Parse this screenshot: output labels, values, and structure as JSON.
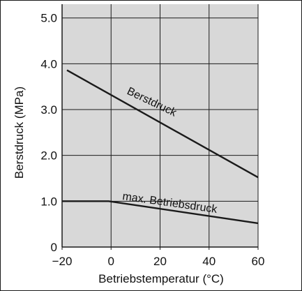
{
  "chart_data": {
    "type": "line",
    "title": "",
    "xlabel": "Betriebstemperatur  (°C)",
    "ylabel": "Berstdruck   (MPa)",
    "xlim": [
      -20,
      60
    ],
    "ylim": [
      0,
      5.3
    ],
    "xticks": [
      -20,
      0,
      20,
      40,
      60
    ],
    "xtick_labels": [
      "−20",
      "0",
      "20",
      "40",
      "60"
    ],
    "yticks": [
      0,
      1,
      2,
      3,
      4,
      5
    ],
    "ytick_labels": [
      "0",
      "1.0",
      "2.0",
      "3.0",
      "4.0",
      "5.0"
    ],
    "grid": true,
    "series": [
      {
        "name": "Berstdruck",
        "x": [
          -18,
          60
        ],
        "y": [
          3.86,
          1.52
        ]
      },
      {
        "name": "max. Betriebsdruck",
        "x": [
          -20,
          -1,
          60
        ],
        "y": [
          1.0,
          1.0,
          0.52
        ]
      }
    ]
  },
  "colors": {
    "plot_background": "#d8d8d8",
    "page_background": "#ffffff",
    "line": "#1a1a1a",
    "grid": "#1a1a1a"
  }
}
